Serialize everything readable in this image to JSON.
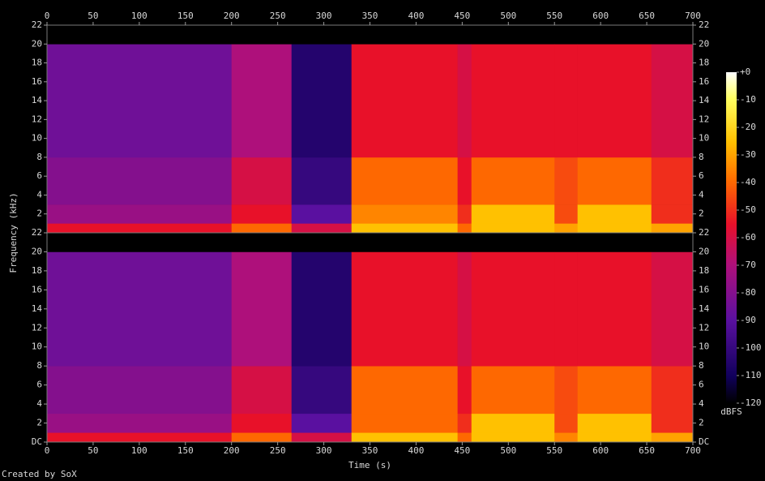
{
  "chart_data": [
    {
      "type": "spectrogram",
      "ylabel": "Frequency (kHz)",
      "xlim": [
        0,
        700
      ],
      "xticks": [
        0,
        50,
        100,
        150,
        200,
        250,
        300,
        350,
        400,
        450,
        500,
        550,
        600,
        650,
        700
      ],
      "ylim": [
        0,
        22
      ],
      "yticks": [
        2,
        4,
        6,
        8,
        10,
        12,
        14,
        16,
        18,
        20,
        22
      ],
      "bins": [
        0,
        200,
        265,
        330,
        445,
        460,
        550,
        575,
        655,
        700
      ],
      "freq_bins": [
        0,
        1,
        3,
        8,
        20,
        22
      ],
      "values": [
        [
          -55,
          -75,
          -80,
          -85,
          -120
        ],
        [
          -40,
          -55,
          -60,
          -70,
          -120
        ],
        [
          -60,
          -90,
          -100,
          -105,
          -120
        ],
        [
          -25,
          -35,
          -40,
          -55,
          -120
        ],
        [
          -40,
          -50,
          -55,
          -60,
          -120
        ],
        [
          -25,
          -25,
          -40,
          -55,
          -120
        ],
        [
          -30,
          -45,
          -45,
          -55,
          -120
        ],
        [
          -25,
          -25,
          -40,
          -55,
          -120
        ],
        [
          -30,
          -50,
          -50,
          -60,
          -120
        ]
      ],
      "zlim": [
        -120,
        0
      ],
      "zticks": [
        {
          "value": 0,
          "label": "+0"
        },
        -10,
        -20,
        -30,
        -40,
        -50,
        -60,
        -70,
        -80,
        -90,
        -100,
        -110,
        -120
      ],
      "zlabel": "dBFS"
    },
    {
      "type": "spectrogram",
      "xlabel": "Time (s)",
      "xlim": [
        0,
        700
      ],
      "xticks": [
        0,
        50,
        100,
        150,
        200,
        250,
        300,
        350,
        400,
        450,
        500,
        550,
        600,
        650,
        700
      ],
      "ylim": [
        0,
        22
      ],
      "yticks": [
        {
          "value": 0,
          "label": "DC"
        },
        2,
        4,
        6,
        8,
        10,
        12,
        14,
        16,
        18,
        20,
        22
      ],
      "bins": [
        0,
        200,
        265,
        330,
        445,
        460,
        550,
        575,
        655,
        700
      ],
      "freq_bins": [
        0,
        1,
        3,
        8,
        20,
        22
      ],
      "values": [
        [
          -55,
          -75,
          -80,
          -85,
          -120
        ],
        [
          -40,
          -55,
          -60,
          -70,
          -120
        ],
        [
          -60,
          -90,
          -100,
          -105,
          -120
        ],
        [
          -25,
          -40,
          -40,
          -55,
          -120
        ],
        [
          -40,
          -50,
          -55,
          -60,
          -120
        ],
        [
          -25,
          -25,
          -40,
          -55,
          -120
        ],
        [
          -35,
          -45,
          -45,
          -55,
          -120
        ],
        [
          -25,
          -25,
          -40,
          -55,
          -120
        ],
        [
          -30,
          -50,
          -50,
          -60,
          -120
        ]
      ]
    }
  ],
  "credit": "Created by SoX"
}
